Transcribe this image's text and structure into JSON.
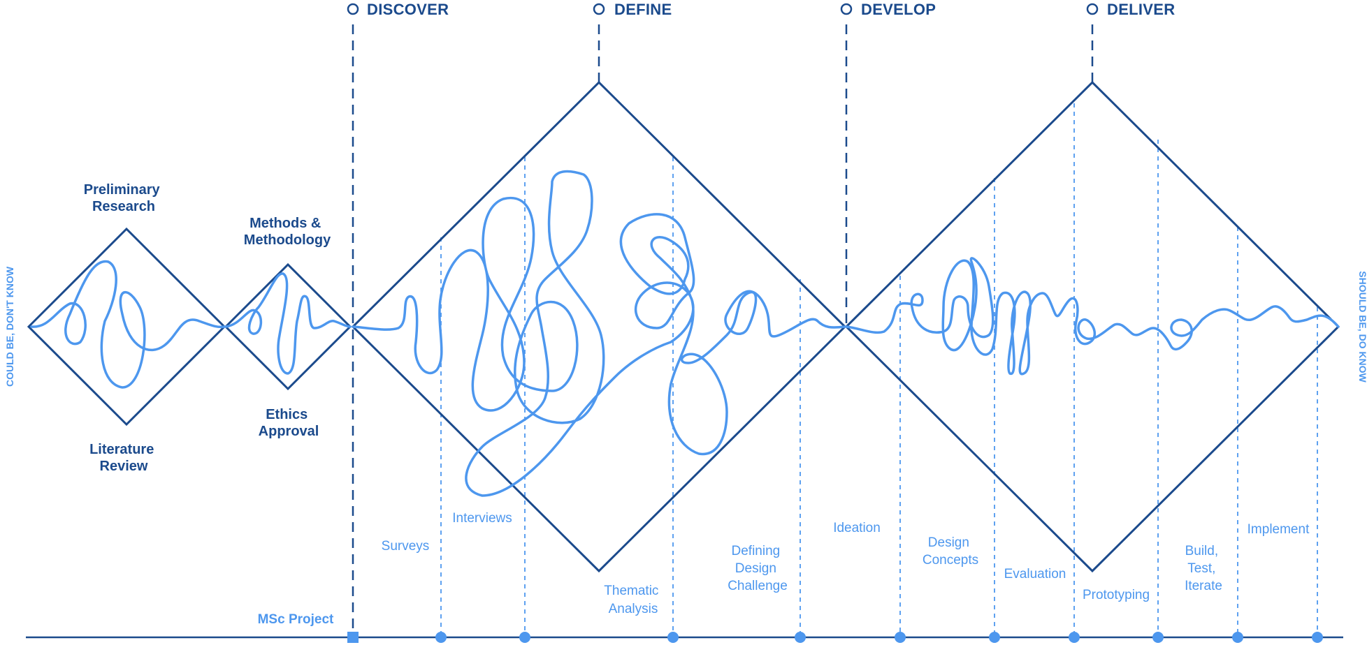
{
  "phases": [
    {
      "id": "discover",
      "label": "DISCOVER"
    },
    {
      "id": "define",
      "label": "DEFINE"
    },
    {
      "id": "develop",
      "label": "DEVELOP"
    },
    {
      "id": "deliver",
      "label": "DELIVER"
    }
  ],
  "stages": {
    "preliminary_research": [
      "Preliminary",
      "Research"
    ],
    "literature_review": [
      "Literature",
      "Review"
    ],
    "methods_methodology": [
      "Methods &",
      "Methodology"
    ],
    "ethics_approval": [
      "Ethics",
      "Approval"
    ]
  },
  "activities": {
    "surveys": [
      "Surveys"
    ],
    "interviews": [
      "Interviews"
    ],
    "thematic_analysis": [
      "Thematic",
      "Analysis"
    ],
    "defining_design_challenge": [
      "Defining",
      "Design",
      "Challenge"
    ],
    "ideation": [
      "Ideation"
    ],
    "design_concepts": [
      "Design",
      "Concepts"
    ],
    "evaluation": [
      "Evaluation"
    ],
    "prototyping": [
      "Prototyping"
    ],
    "build_test_iterate": [
      "Build,",
      "Test,",
      "Iterate"
    ],
    "implement": [
      "Implement"
    ]
  },
  "side_labels": {
    "left": "COULD BE, DON'T KNOW",
    "right": "SHOULD BE, DO KNOW"
  },
  "project_label": "MSc Project",
  "colors": {
    "dark_blue": "#1b4a8c",
    "light_blue": "#4d97ee"
  }
}
